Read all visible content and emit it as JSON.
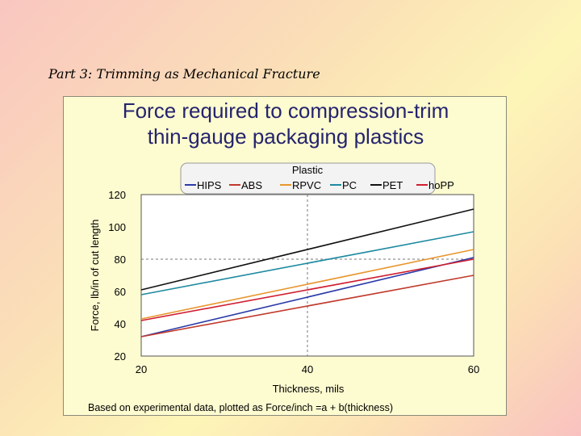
{
  "slide": {
    "title": "Part 3: Trimming as Mechanical Fracture"
  },
  "chart_data": {
    "type": "line",
    "title_lines": [
      "Force required to compression-trim",
      "thin-gauge packaging plastics"
    ],
    "legend_title": "Plastic",
    "xlabel": "Thickness, mils",
    "ylabel": "Force, lb/in of cut length",
    "xlim": [
      20,
      60
    ],
    "ylim": [
      20,
      120
    ],
    "xticks": [
      20,
      40,
      60
    ],
    "yticks": [
      20,
      40,
      60,
      80,
      100,
      120
    ],
    "reference_lines": {
      "x": [
        40
      ],
      "y": [
        80
      ]
    },
    "x": [
      20,
      60
    ],
    "series": [
      {
        "name": "HIPS",
        "color": "#2a3aa8",
        "values": [
          32,
          81
        ]
      },
      {
        "name": "ABS",
        "color": "#c0392b",
        "values": [
          32,
          70
        ]
      },
      {
        "name": "RPVC",
        "color": "#e8962e",
        "values": [
          43,
          86
        ]
      },
      {
        "name": "PC",
        "color": "#1e8aa0",
        "values": [
          58,
          97
        ]
      },
      {
        "name": "PET",
        "color": "#111111",
        "values": [
          61,
          111
        ]
      },
      {
        "name": "hoPP",
        "color": "#d01e30",
        "values": [
          42,
          80
        ]
      }
    ],
    "footnote": "Based on experimental data, plotted as Force/inch =a + b(thickness)"
  }
}
